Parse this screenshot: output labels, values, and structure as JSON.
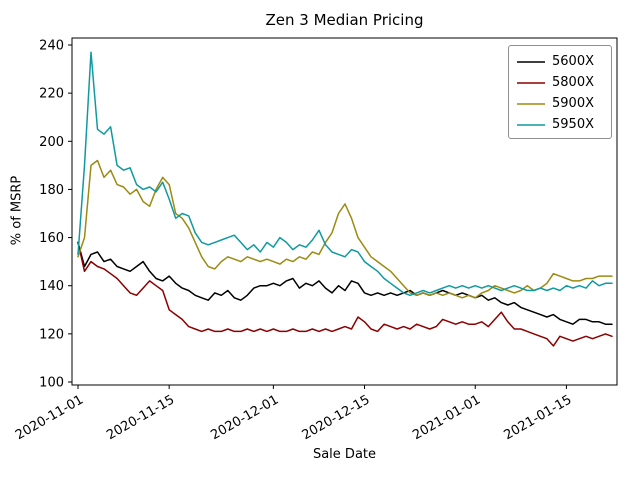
{
  "chart_data": {
    "type": "line",
    "title": "Zen 3 Median Pricing",
    "xlabel": "Sale Date",
    "ylabel": "% of MSRP",
    "ylim": [
      100,
      240
    ],
    "yticks": [
      100,
      120,
      140,
      160,
      180,
      200,
      220,
      240
    ],
    "grid": false,
    "legend_position": "upper right",
    "xtick_labels": [
      "2020-11-01",
      "2020-11-15",
      "2020-12-01",
      "2020-12-15",
      "2021-01-01",
      "2021-01-15"
    ],
    "xtick_indices": [
      0,
      14,
      30,
      44,
      61,
      75
    ],
    "x_dates": [
      "2020-11-01",
      "2020-11-02",
      "2020-11-03",
      "2020-11-04",
      "2020-11-05",
      "2020-11-06",
      "2020-11-07",
      "2020-11-08",
      "2020-11-09",
      "2020-11-10",
      "2020-11-11",
      "2020-11-12",
      "2020-11-13",
      "2020-11-14",
      "2020-11-15",
      "2020-11-16",
      "2020-11-17",
      "2020-11-18",
      "2020-11-19",
      "2020-11-20",
      "2020-11-21",
      "2020-11-22",
      "2020-11-23",
      "2020-11-24",
      "2020-11-25",
      "2020-11-26",
      "2020-11-27",
      "2020-11-28",
      "2020-11-29",
      "2020-11-30",
      "2020-12-01",
      "2020-12-02",
      "2020-12-03",
      "2020-12-04",
      "2020-12-05",
      "2020-12-06",
      "2020-12-07",
      "2020-12-08",
      "2020-12-09",
      "2020-12-10",
      "2020-12-11",
      "2020-12-12",
      "2020-12-13",
      "2020-12-14",
      "2020-12-15",
      "2020-12-16",
      "2020-12-17",
      "2020-12-18",
      "2020-12-19",
      "2020-12-20",
      "2020-12-21",
      "2020-12-22",
      "2020-12-23",
      "2020-12-24",
      "2020-12-25",
      "2020-12-26",
      "2020-12-27",
      "2020-12-28",
      "2020-12-29",
      "2020-12-30",
      "2020-12-31",
      "2021-01-01",
      "2021-01-02",
      "2021-01-03",
      "2021-01-04",
      "2021-01-05",
      "2021-01-06",
      "2021-01-07",
      "2021-01-08",
      "2021-01-09",
      "2021-01-10",
      "2021-01-11",
      "2021-01-12",
      "2021-01-13",
      "2021-01-14",
      "2021-01-15",
      "2021-01-16",
      "2021-01-17",
      "2021-01-18",
      "2021-01-19",
      "2021-01-20",
      "2021-01-21",
      "2021-01-22"
    ],
    "series": [
      {
        "name": "5600X",
        "color": "#000000",
        "values": [
          158,
          148,
          153,
          154,
          150,
          151,
          148,
          147,
          146,
          148,
          150,
          146,
          143,
          142,
          144,
          141,
          139,
          138,
          136,
          135,
          134,
          137,
          136,
          138,
          135,
          134,
          136,
          139,
          140,
          140,
          141,
          140,
          142,
          143,
          139,
          141,
          140,
          142,
          139,
          137,
          140,
          138,
          142,
          141,
          137,
          136,
          137,
          136,
          137,
          136,
          137,
          138,
          136,
          137,
          136,
          137,
          138,
          137,
          136,
          137,
          136,
          135,
          136,
          134,
          135,
          133,
          132,
          133,
          131,
          130,
          129,
          128,
          127,
          128,
          126,
          125,
          124,
          126,
          126,
          125,
          125,
          124,
          124
        ]
      },
      {
        "name": "5800X",
        "color": "#8b0000",
        "values": [
          158,
          146,
          150,
          148,
          147,
          145,
          143,
          140,
          137,
          136,
          139,
          142,
          140,
          138,
          130,
          128,
          126,
          123,
          122,
          121,
          122,
          121,
          121,
          122,
          121,
          121,
          122,
          121,
          122,
          121,
          122,
          121,
          121,
          122,
          121,
          121,
          122,
          121,
          122,
          121,
          122,
          123,
          122,
          127,
          125,
          122,
          121,
          124,
          123,
          122,
          123,
          122,
          124,
          123,
          122,
          123,
          126,
          125,
          124,
          125,
          124,
          124,
          125,
          123,
          126,
          129,
          125,
          122,
          122,
          121,
          120,
          119,
          118,
          115,
          119,
          118,
          117,
          118,
          119,
          118,
          119,
          120,
          119
        ]
      },
      {
        "name": "5900X",
        "color": "#9c8a11",
        "values": [
          152,
          160,
          190,
          192,
          185,
          188,
          182,
          181,
          178,
          180,
          175,
          173,
          180,
          185,
          182,
          170,
          168,
          164,
          158,
          152,
          148,
          147,
          150,
          152,
          151,
          150,
          152,
          151,
          150,
          151,
          150,
          149,
          151,
          150,
          152,
          151,
          154,
          153,
          158,
          162,
          170,
          174,
          168,
          160,
          156,
          152,
          150,
          148,
          146,
          143,
          140,
          137,
          136,
          137,
          136,
          137,
          136,
          137,
          136,
          135,
          136,
          135,
          137,
          138,
          140,
          139,
          138,
          137,
          138,
          140,
          138,
          139,
          141,
          145,
          144,
          143,
          142,
          142,
          143,
          143,
          144,
          144,
          144
        ]
      },
      {
        "name": "5950X",
        "color": "#0f9aa0",
        "values": [
          153,
          190,
          237,
          205,
          203,
          206,
          190,
          188,
          189,
          182,
          180,
          181,
          179,
          183,
          176,
          168,
          170,
          169,
          162,
          158,
          157,
          158,
          159,
          160,
          161,
          158,
          155,
          157,
          154,
          158,
          156,
          160,
          158,
          155,
          157,
          156,
          159,
          163,
          157,
          154,
          153,
          152,
          155,
          154,
          150,
          148,
          146,
          143,
          141,
          139,
          137,
          136,
          137,
          138,
          137,
          138,
          139,
          140,
          139,
          140,
          139,
          140,
          139,
          140,
          139,
          138,
          139,
          140,
          139,
          138,
          138,
          139,
          138,
          139,
          138,
          140,
          139,
          140,
          139,
          142,
          140,
          141,
          141
        ]
      }
    ]
  }
}
